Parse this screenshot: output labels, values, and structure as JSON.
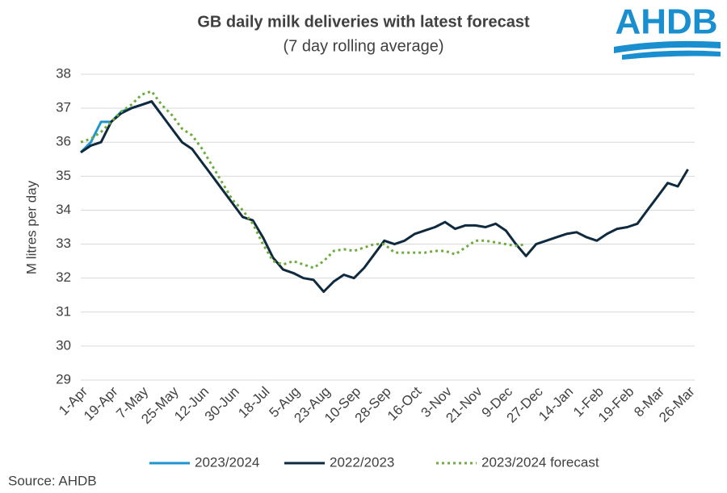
{
  "chart_data": {
    "type": "line",
    "title": "GB daily milk deliveries with latest forecast",
    "subtitle": "(7 day rolling average)",
    "y_label": "M litres per day",
    "source": "Source: AHDB",
    "logo": "AHDB",
    "categories": [
      "1-Apr",
      null,
      null,
      "19-Apr",
      null,
      null,
      "7-May",
      null,
      null,
      "25-May",
      null,
      null,
      "12-Jun",
      null,
      null,
      "30-Jun",
      null,
      null,
      "18-Jul",
      null,
      null,
      "5-Aug",
      null,
      null,
      "23-Aug",
      null,
      null,
      "10-Sep",
      null,
      null,
      "28-Sep",
      null,
      null,
      "16-Oct",
      null,
      null,
      "3-Nov",
      null,
      null,
      "21-Nov",
      null,
      null,
      "9-Dec",
      null,
      null,
      "27-Dec",
      null,
      null,
      "14-Jan",
      null,
      null,
      "1-Feb",
      null,
      null,
      "19-Feb",
      null,
      null,
      "8-Mar",
      null,
      null,
      "26-Mar"
    ],
    "ylim": [
      29,
      38
    ],
    "yticks": [
      29,
      30,
      31,
      32,
      33,
      34,
      35,
      36,
      37,
      38
    ],
    "grid": true,
    "series": [
      {
        "name": "2023/2024",
        "color": "#1f95d0",
        "dash": false,
        "values": [
          35.7,
          36.0,
          36.6,
          36.6,
          36.9,
          37.0,
          37.1,
          37.2,
          36.8,
          null,
          null,
          null,
          null,
          null,
          null,
          null,
          null,
          null,
          null,
          null,
          null,
          null,
          null,
          null,
          null,
          null,
          null,
          null,
          null,
          null,
          null,
          null,
          null,
          null,
          null,
          null,
          null,
          null,
          null,
          null,
          null,
          null,
          null,
          null,
          null,
          null,
          null,
          null,
          null,
          null,
          null,
          null,
          null,
          null,
          null,
          null,
          null,
          null,
          null,
          null,
          null
        ]
      },
      {
        "name": "2022/2023",
        "color": "#0f2a3f",
        "dash": false,
        "values": [
          35.7,
          35.9,
          36.0,
          36.6,
          36.85,
          37.0,
          37.1,
          37.2,
          36.8,
          36.4,
          36.0,
          35.8,
          35.4,
          35.0,
          34.6,
          34.2,
          33.8,
          33.7,
          33.2,
          32.6,
          32.25,
          32.15,
          32.0,
          31.95,
          31.6,
          31.9,
          32.1,
          32.0,
          32.3,
          32.7,
          33.1,
          33.0,
          33.1,
          33.3,
          33.4,
          33.5,
          33.65,
          33.45,
          33.55,
          33.55,
          33.5,
          33.6,
          33.4,
          33.0,
          32.65,
          33.0,
          33.1,
          33.2,
          33.3,
          33.35,
          33.2,
          33.1,
          33.3,
          33.45,
          33.5,
          33.6,
          34.0,
          34.4,
          34.8,
          34.7,
          35.2
        ]
      },
      {
        "name": "2023/2024 forecast",
        "color": "#6fac3f",
        "dash": true,
        "values": [
          36.0,
          36.1,
          36.3,
          36.6,
          36.9,
          37.1,
          37.4,
          37.5,
          37.1,
          36.8,
          36.4,
          36.2,
          35.8,
          35.3,
          34.8,
          34.3,
          34.0,
          33.6,
          33.0,
          32.5,
          32.4,
          32.5,
          32.4,
          32.3,
          32.5,
          32.8,
          32.85,
          32.8,
          32.9,
          33.0,
          33.0,
          32.75,
          32.75,
          32.75,
          32.75,
          32.8,
          32.8,
          32.7,
          32.9,
          33.1,
          33.1,
          33.05,
          33.0,
          32.95,
          33.0,
          null,
          null,
          null,
          null,
          null,
          null,
          null,
          null,
          null,
          null,
          null,
          null,
          null,
          null,
          null,
          null
        ]
      }
    ]
  }
}
